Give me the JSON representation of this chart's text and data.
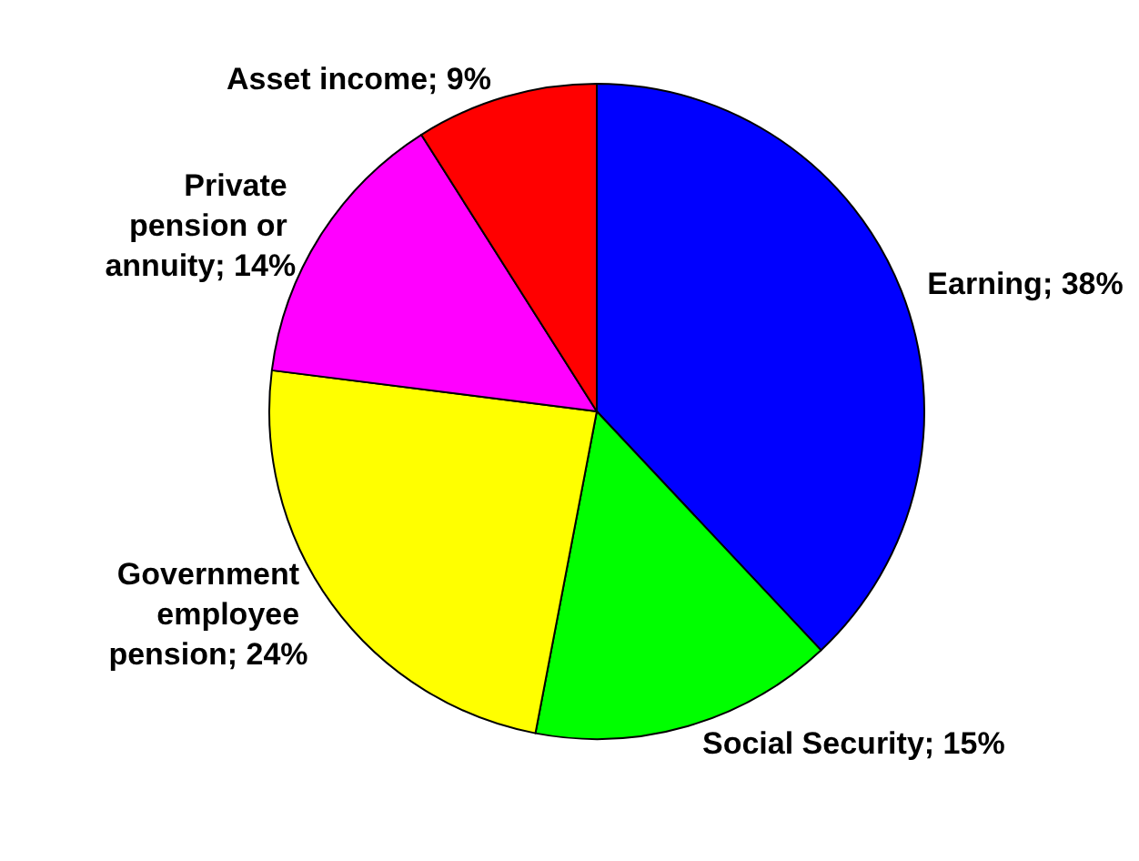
{
  "chart_data": {
    "type": "pie",
    "categories": [
      "Earning",
      "Social Security",
      "Government employee pension",
      "Private pension or annuity",
      "Asset income"
    ],
    "values": [
      38,
      15,
      24,
      14,
      9
    ],
    "colors": [
      "#0000ff",
      "#00ff00",
      "#ffff00",
      "#ff00ff",
      "#ff0000"
    ],
    "value_labels": [
      "38%",
      "15%",
      "24%",
      "14%",
      "9%"
    ],
    "legend": false
  }
}
